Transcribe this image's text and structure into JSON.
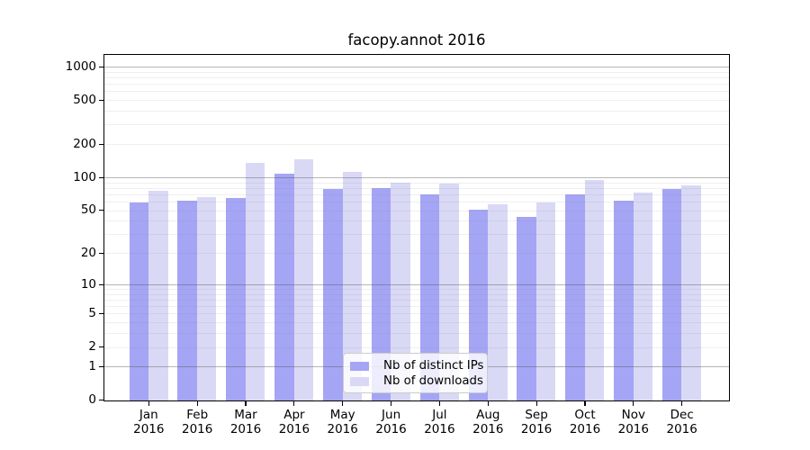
{
  "title": "facopy.annot 2016",
  "chart_data": {
    "type": "bar",
    "categories": [
      "Jan 2016",
      "Feb 2016",
      "Mar 2016",
      "Apr 2016",
      "May 2016",
      "Jun 2016",
      "Jul 2016",
      "Aug 2016",
      "Sep 2016",
      "Oct 2016",
      "Nov 2016",
      "Dec 2016"
    ],
    "months": [
      "Jan",
      "Feb",
      "Mar",
      "Apr",
      "May",
      "Jun",
      "Jul",
      "Aug",
      "Sep",
      "Oct",
      "Nov",
      "Dec"
    ],
    "year": "2016",
    "series": [
      {
        "name": "Nb of distinct IPs",
        "color": "#a5a5f5",
        "values": [
          59,
          62,
          66,
          109,
          79,
          80,
          71,
          51,
          44,
          71,
          62,
          79
        ]
      },
      {
        "name": "Nb of downloads",
        "color": "#d9d9f6",
        "values": [
          76,
          67,
          136,
          146,
          113,
          90,
          88,
          57,
          59,
          95,
          73,
          85
        ]
      }
    ],
    "xlabel": "",
    "ylabel": "",
    "yscale": "log1p",
    "ylim": [
      0,
      1300
    ],
    "yticks": [
      1000,
      500,
      200,
      100,
      50,
      20,
      10,
      5,
      2,
      1,
      0
    ],
    "minor_grid_decades": [
      1,
      10,
      100
    ],
    "grid": "horizontal",
    "legend_position": "lower center"
  },
  "colors": {
    "bar_dark": "#a5a5f5",
    "bar_light": "#d9d9f6",
    "major_grid": "#c3c3c3",
    "minor_grid": "#ebebeb",
    "spine": "#000000",
    "legend_border": "#cccccc",
    "background": "#ffffff"
  }
}
